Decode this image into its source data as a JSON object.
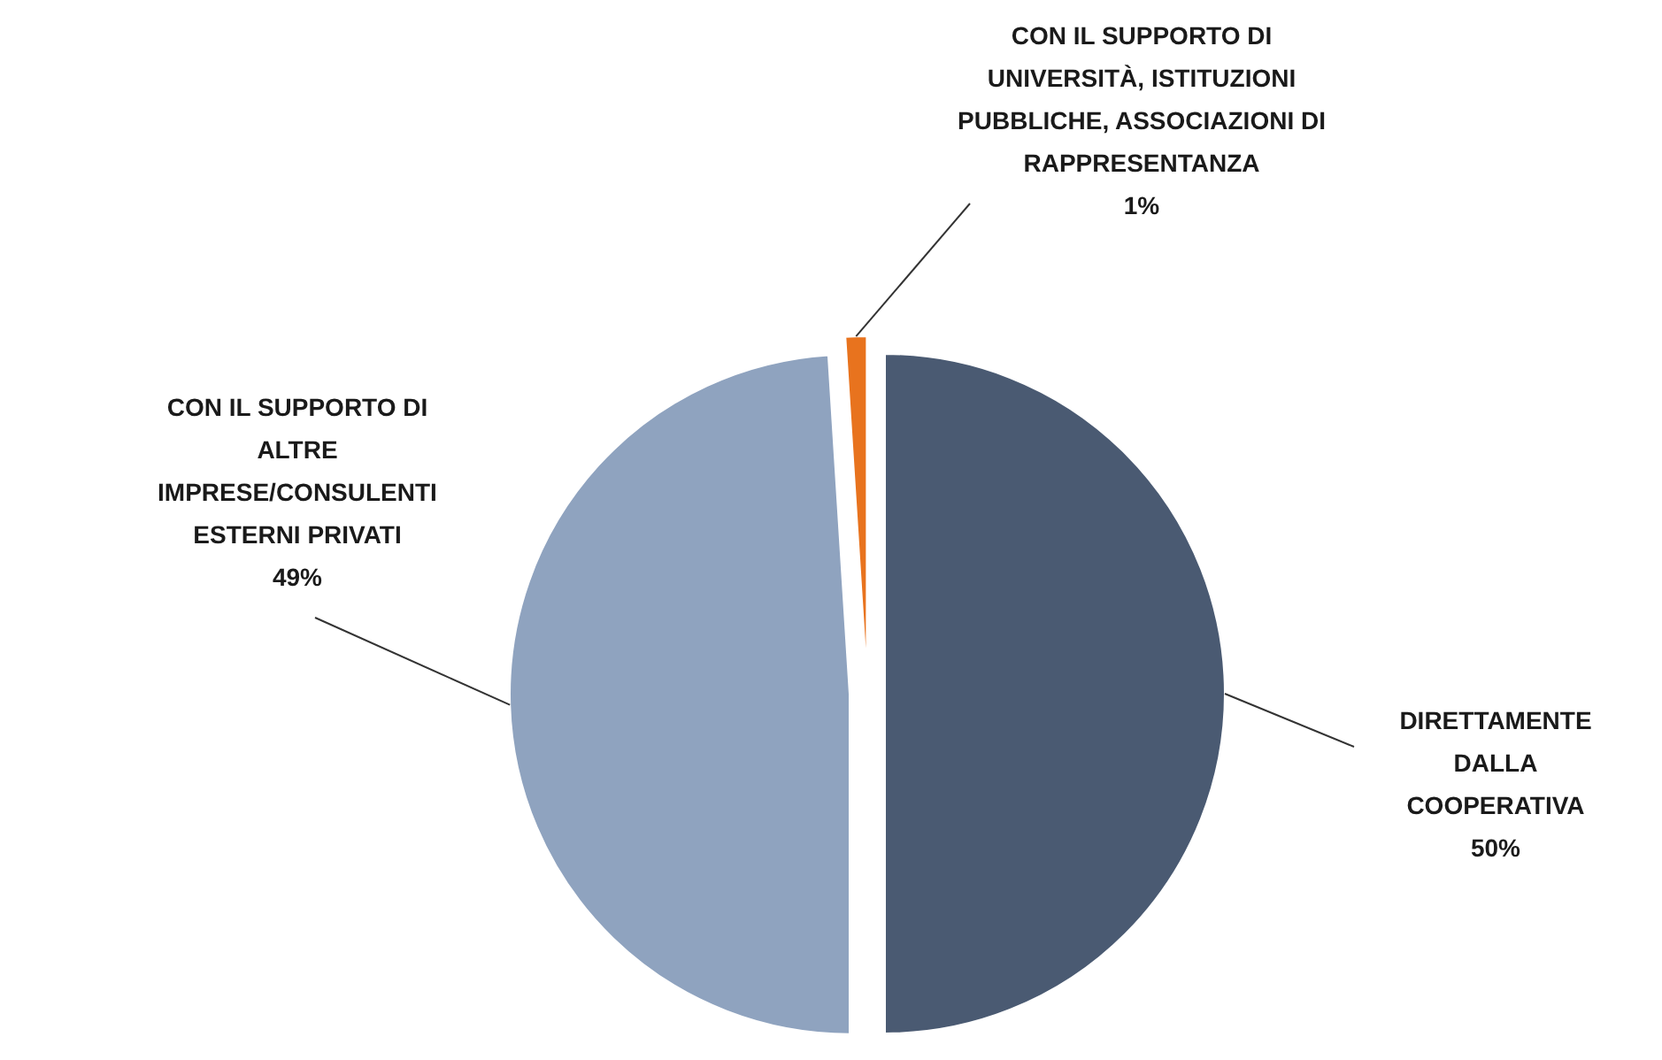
{
  "chart_data": {
    "type": "pie",
    "categories": [
      "DIRETTAMENTE DALLA COOPERATIVA",
      "CON IL SUPPORTO DI ALTRE IMPRESE/CONSULENTI ESTERNI PRIVATI",
      "CON IL SUPPORTO DI UNIVERSITÀ, ISTITUZIONI PUBBLICHE, ASSOCIAZIONI DI RAPPRESENTANZA"
    ],
    "values": [
      50,
      49,
      1
    ],
    "colors": [
      "#4a5a72",
      "#8fa3bf",
      "#e8731e"
    ],
    "value_labels": [
      "50%",
      "49%",
      "1%"
    ]
  }
}
